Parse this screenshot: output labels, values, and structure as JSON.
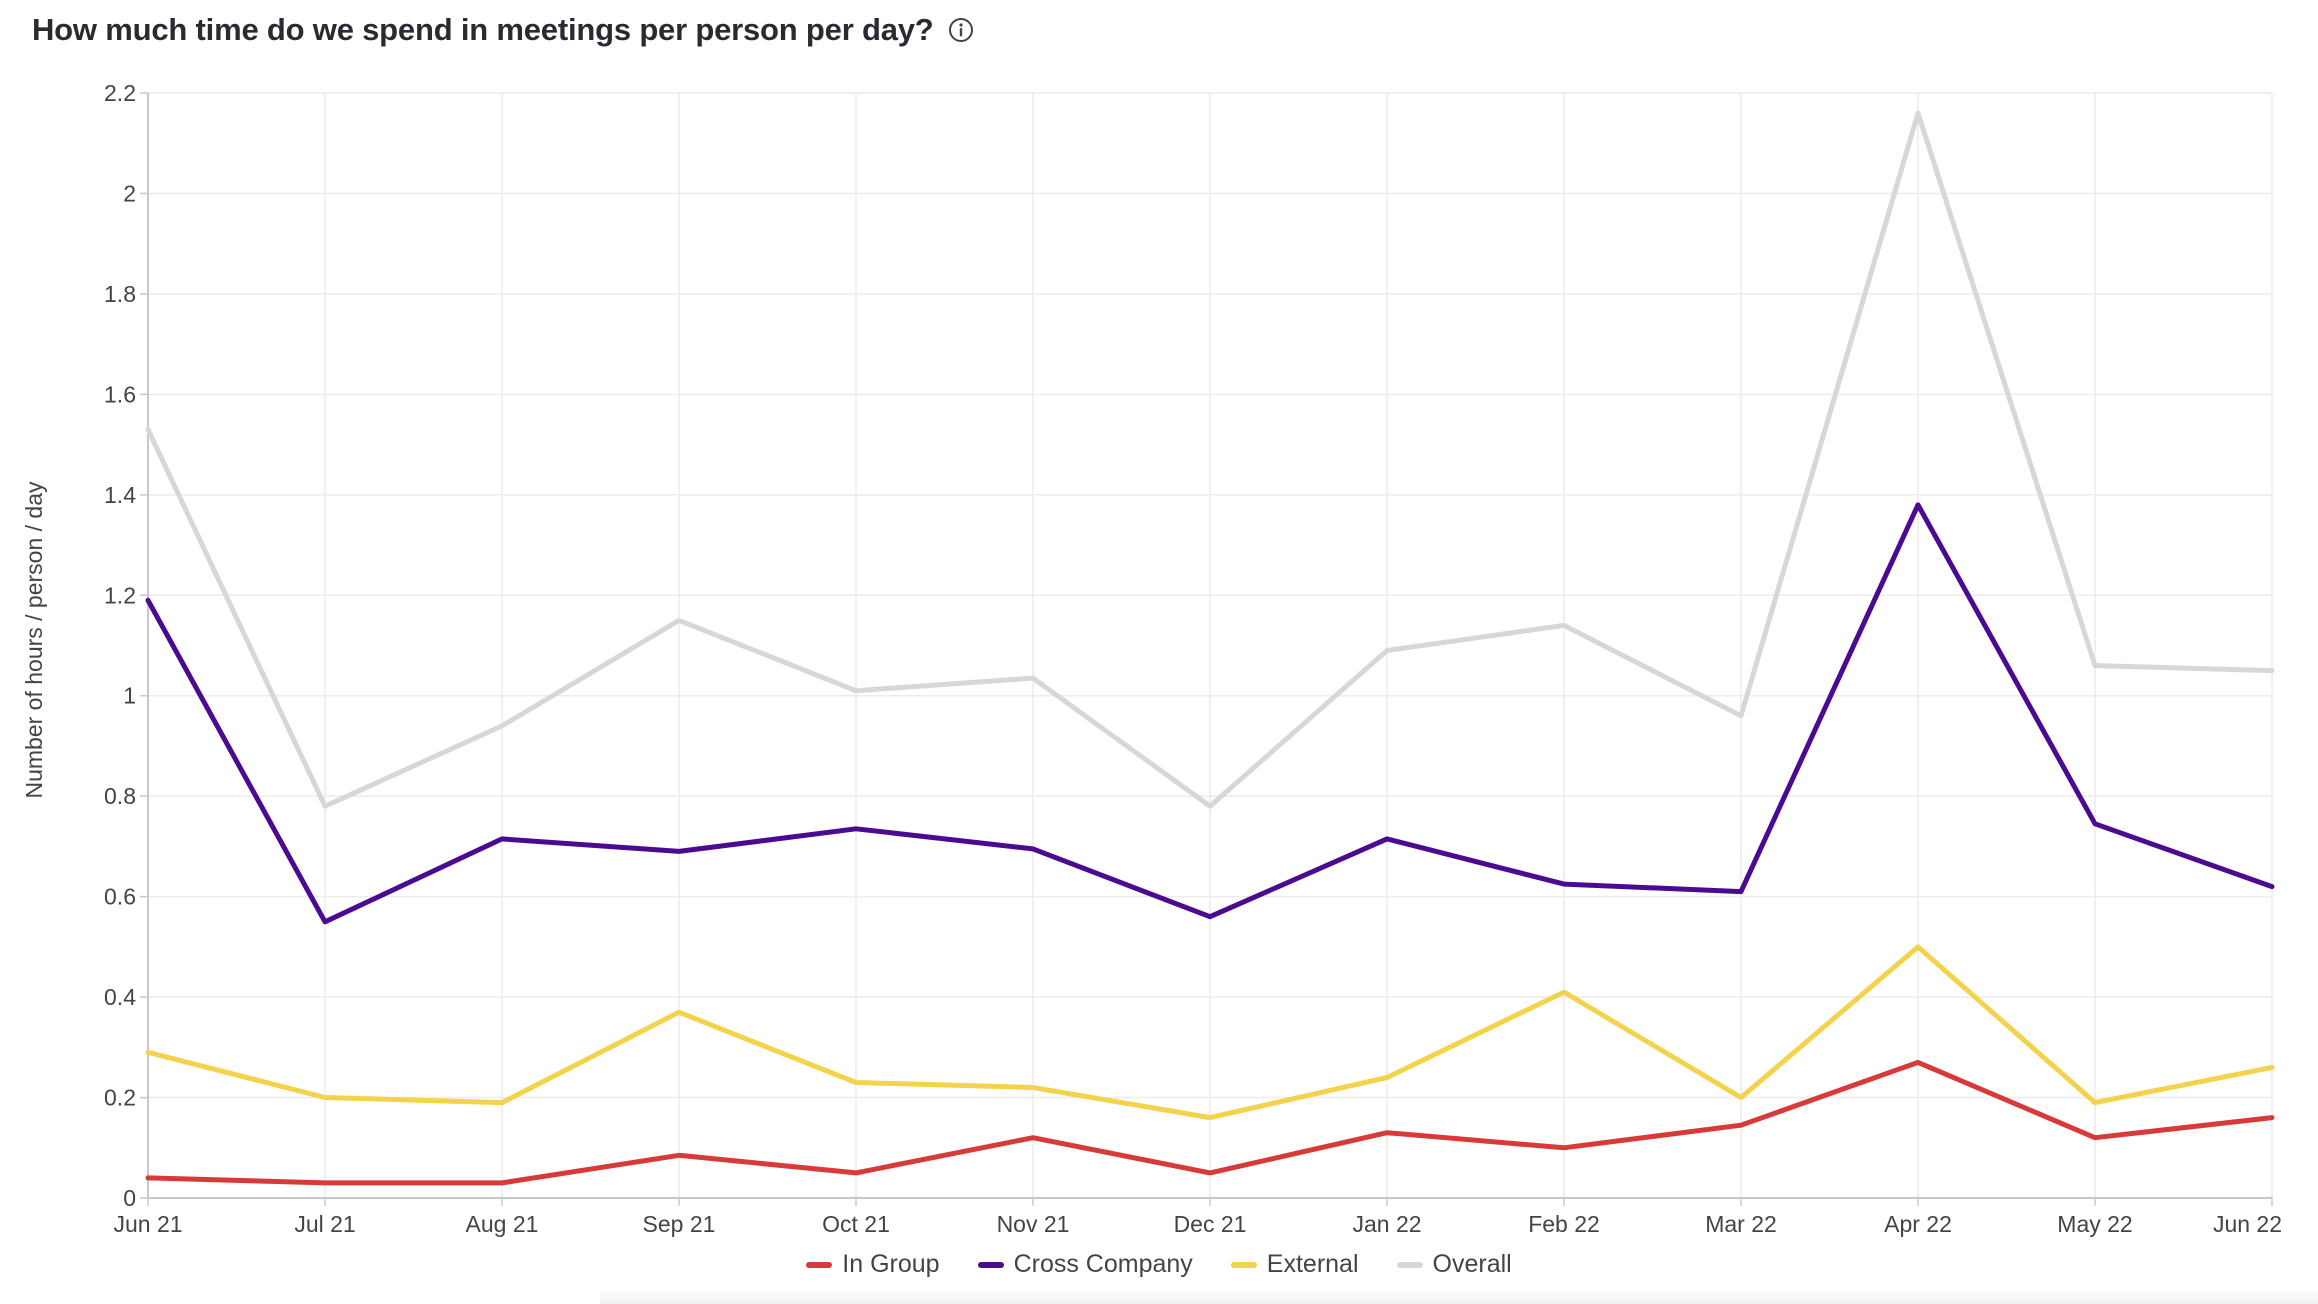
{
  "colors": {
    "in_group": "#d83a3a",
    "cross_company": "#4b0a8f",
    "external": "#f2d34b",
    "overall": "#d7d7d7"
  },
  "chart_data": {
    "type": "line",
    "title": "How much time do we spend in meetings per person per day?",
    "xlabel": "",
    "ylabel": "Number of hours / person / day",
    "categories": [
      "Jun 21",
      "Jul 21",
      "Aug 21",
      "Sep 21",
      "Oct 21",
      "Nov 21",
      "Dec 21",
      "Jan 22",
      "Feb 22",
      "Mar 22",
      "Apr 22",
      "May 22",
      "Jun 22"
    ],
    "ylim": [
      0,
      2.2
    ],
    "yticks": [
      0,
      0.2,
      0.4,
      0.6,
      0.8,
      1,
      1.2,
      1.4,
      1.6,
      1.8,
      2,
      2.2
    ],
    "ytick_labels": [
      "0",
      "0.2",
      "0.4",
      "0.6",
      "0.8",
      "1",
      "1.2",
      "1.4",
      "1.6",
      "1.8",
      "2",
      "2.2"
    ],
    "grid": true,
    "legend_position": "bottom-center",
    "series": [
      {
        "key": "in_group",
        "name": "In Group",
        "values": [
          0.04,
          0.03,
          0.03,
          0.085,
          0.05,
          0.12,
          0.05,
          0.13,
          0.1,
          0.145,
          0.27,
          0.12,
          0.16
        ]
      },
      {
        "key": "cross_company",
        "name": "Cross Company",
        "values": [
          1.19,
          0.55,
          0.715,
          0.69,
          0.735,
          0.695,
          0.56,
          0.715,
          0.625,
          0.61,
          1.38,
          0.745,
          0.62
        ]
      },
      {
        "key": "external",
        "name": "External",
        "values": [
          0.29,
          0.2,
          0.19,
          0.37,
          0.23,
          0.22,
          0.16,
          0.24,
          0.41,
          0.2,
          0.5,
          0.19,
          0.26
        ]
      },
      {
        "key": "overall",
        "name": "Overall",
        "values": [
          1.53,
          0.78,
          0.94,
          1.15,
          1.01,
          1.035,
          0.78,
          1.09,
          1.14,
          0.96,
          2.16,
          1.06,
          1.05
        ]
      }
    ]
  }
}
